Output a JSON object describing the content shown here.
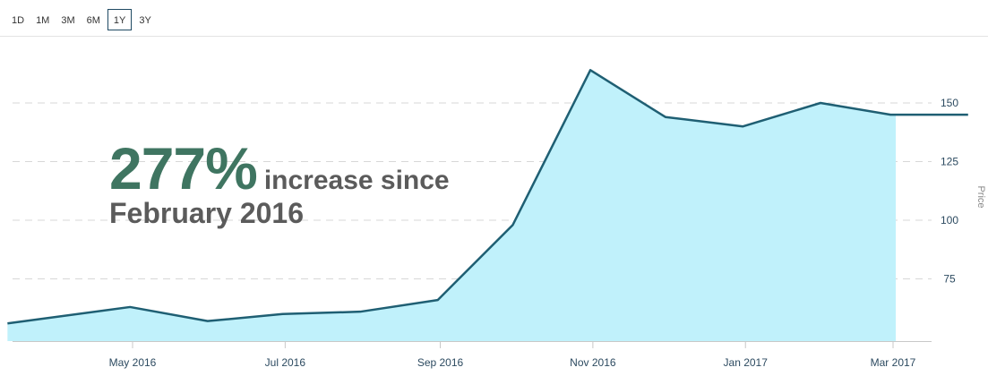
{
  "range_selector": {
    "options": [
      {
        "label": "1D",
        "active": false
      },
      {
        "label": "1M",
        "active": false
      },
      {
        "label": "3M",
        "active": false
      },
      {
        "label": "6M",
        "active": false
      },
      {
        "label": "1Y",
        "active": true
      },
      {
        "label": "3Y",
        "active": false
      }
    ]
  },
  "annotation": {
    "big_value": "277%",
    "suffix": "increase since",
    "line2": "February 2016"
  },
  "colors": {
    "line": "#1f5f73",
    "fill": "#c0f1fb",
    "grid": "#d7d7d7",
    "accent": "#3f7561"
  },
  "chart_data": {
    "type": "area",
    "x": [
      "2016-03-12",
      "2016-04-30",
      "2016-05-31",
      "2016-06-30",
      "2016-07-31",
      "2016-08-31",
      "2016-09-30",
      "2016-10-31",
      "2016-11-30",
      "2016-12-31",
      "2017-01-31",
      "2017-02-28",
      "2017-03-31"
    ],
    "series": [
      {
        "values": [
          56,
          63,
          57,
          60,
          61,
          66,
          98,
          164,
          144,
          140,
          150,
          145,
          145
        ]
      }
    ],
    "x_tick_labels": [
      "May 2016",
      "Jul 2016",
      "Sep 2016",
      "Nov 2016",
      "Jan 2017",
      "Mar 2017"
    ],
    "y_ticks": [
      75,
      100,
      125,
      150
    ],
    "ylabel": "Price",
    "ylim": [
      50,
      175
    ],
    "grid": true,
    "y_axis_side": "right"
  }
}
